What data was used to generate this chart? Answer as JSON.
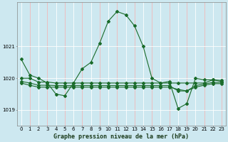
{
  "title": "Graphe pression niveau de la mer (hPa)",
  "bg_color": "#cde8f0",
  "grid_color_white": "#ffffff",
  "grid_color_pink": "#f0b8b8",
  "line_color": "#1a6b2a",
  "xlim": [
    -0.5,
    23.5
  ],
  "ylim": [
    1018.5,
    1022.4
  ],
  "yticks": [
    1019,
    1020,
    1021
  ],
  "xticks": [
    0,
    1,
    2,
    3,
    4,
    5,
    6,
    7,
    8,
    9,
    10,
    11,
    12,
    13,
    14,
    15,
    16,
    17,
    18,
    19,
    20,
    21,
    22,
    23
  ],
  "series": [
    [
      1020.6,
      1020.1,
      1020.0,
      1019.85,
      1019.5,
      1019.45,
      1019.85,
      1020.3,
      1020.5,
      1021.1,
      1021.8,
      1022.1,
      1022.0,
      1021.65,
      1021.0,
      1020.0,
      1019.85,
      1019.9,
      1019.05,
      1019.2,
      1020.0,
      1019.95,
      1019.95,
      1019.9
    ],
    [
      1020.0,
      1020.0,
      1019.88,
      1019.88,
      1019.85,
      1019.85,
      1019.85,
      1019.85,
      1019.85,
      1019.85,
      1019.85,
      1019.85,
      1019.85,
      1019.85,
      1019.85,
      1019.85,
      1019.85,
      1019.85,
      1019.85,
      1019.85,
      1019.85,
      1019.85,
      1019.95,
      1019.93
    ],
    [
      1019.9,
      1019.85,
      1019.78,
      1019.78,
      1019.77,
      1019.77,
      1019.77,
      1019.77,
      1019.77,
      1019.77,
      1019.77,
      1019.77,
      1019.77,
      1019.77,
      1019.77,
      1019.77,
      1019.77,
      1019.77,
      1019.6,
      1019.6,
      1019.77,
      1019.82,
      1019.87,
      1019.87
    ],
    [
      1019.85,
      1019.78,
      1019.72,
      1019.72,
      1019.72,
      1019.72,
      1019.72,
      1019.72,
      1019.72,
      1019.72,
      1019.72,
      1019.72,
      1019.72,
      1019.72,
      1019.72,
      1019.72,
      1019.72,
      1019.72,
      1019.65,
      1019.6,
      1019.72,
      1019.78,
      1019.83,
      1019.83
    ]
  ],
  "marker": "D",
  "markersize": 2.0,
  "linewidth": 0.8,
  "tick_fontsize": 5.0,
  "title_fontsize": 6.0,
  "title_fontweight": "bold",
  "figsize": [
    3.2,
    2.0
  ],
  "dpi": 100
}
